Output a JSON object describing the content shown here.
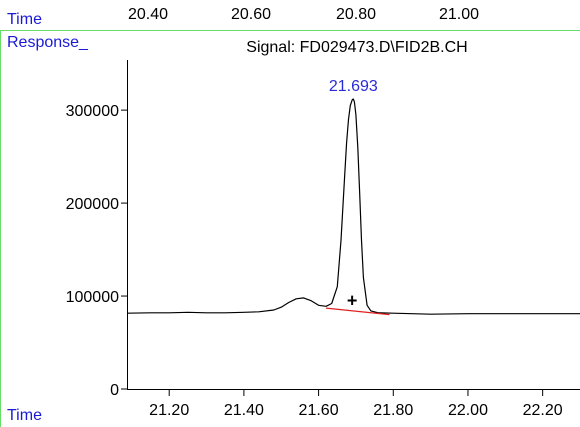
{
  "top_strip": {
    "time_label": "Time",
    "ticks": [
      "20.40",
      "20.60",
      "20.80",
      "21.00"
    ]
  },
  "colors": {
    "blue_label": "#1a1ad6",
    "peak_label": "#2a2ad8",
    "frame_green": "#66dd66",
    "trace": "#000000",
    "baseline": "#e02020"
  },
  "chart_data": {
    "type": "line",
    "title": "Signal: FD029473.D\\FID2B.CH",
    "ylabel": "Response_",
    "xlabel": "Time",
    "xlim": [
      21.087,
      22.3
    ],
    "ylim": [
      0,
      355000
    ],
    "x_ticks": [
      21.2,
      21.4,
      21.6,
      21.8,
      22.0,
      22.2
    ],
    "x_tick_labels": [
      "21.20",
      "21.40",
      "21.60",
      "21.80",
      "22.00",
      "22.20"
    ],
    "y_ticks": [
      0,
      100000,
      200000,
      300000
    ],
    "y_tick_labels": [
      "0",
      "100000",
      "200000",
      "300000"
    ],
    "grid": false,
    "series": [
      {
        "x": [
          21.087,
          21.15,
          21.2,
          21.25,
          21.3,
          21.35,
          21.4,
          21.44,
          21.48,
          21.5,
          21.52,
          21.54,
          21.56,
          21.58,
          21.6,
          21.62,
          21.635,
          21.65,
          21.66,
          21.67,
          21.675,
          21.68,
          21.685,
          21.69,
          21.693,
          21.696,
          21.7,
          21.705,
          21.71,
          21.715,
          21.72,
          21.73,
          21.74,
          21.76,
          21.8,
          21.85,
          21.9,
          22.0,
          22.1,
          22.2,
          22.3
        ],
        "y": [
          81500,
          82000,
          82000,
          82500,
          82000,
          82000,
          82500,
          83000,
          85000,
          88000,
          93000,
          97000,
          98000,
          95000,
          90000,
          89000,
          92000,
          110000,
          160000,
          230000,
          265000,
          290000,
          305000,
          311000,
          312000,
          309000,
          295000,
          260000,
          210000,
          160000,
          120000,
          90000,
          84000,
          82000,
          81500,
          81000,
          80500,
          81000,
          81000,
          81000,
          81000
        ]
      }
    ],
    "baseline": {
      "x": [
        21.62,
        21.79
      ],
      "y": [
        87000,
        80000
      ]
    },
    "peak_label": {
      "x": 21.693,
      "y": 312000,
      "text": "21.693"
    },
    "marker": {
      "x": 21.69,
      "y": 95000,
      "symbol": "+"
    }
  }
}
